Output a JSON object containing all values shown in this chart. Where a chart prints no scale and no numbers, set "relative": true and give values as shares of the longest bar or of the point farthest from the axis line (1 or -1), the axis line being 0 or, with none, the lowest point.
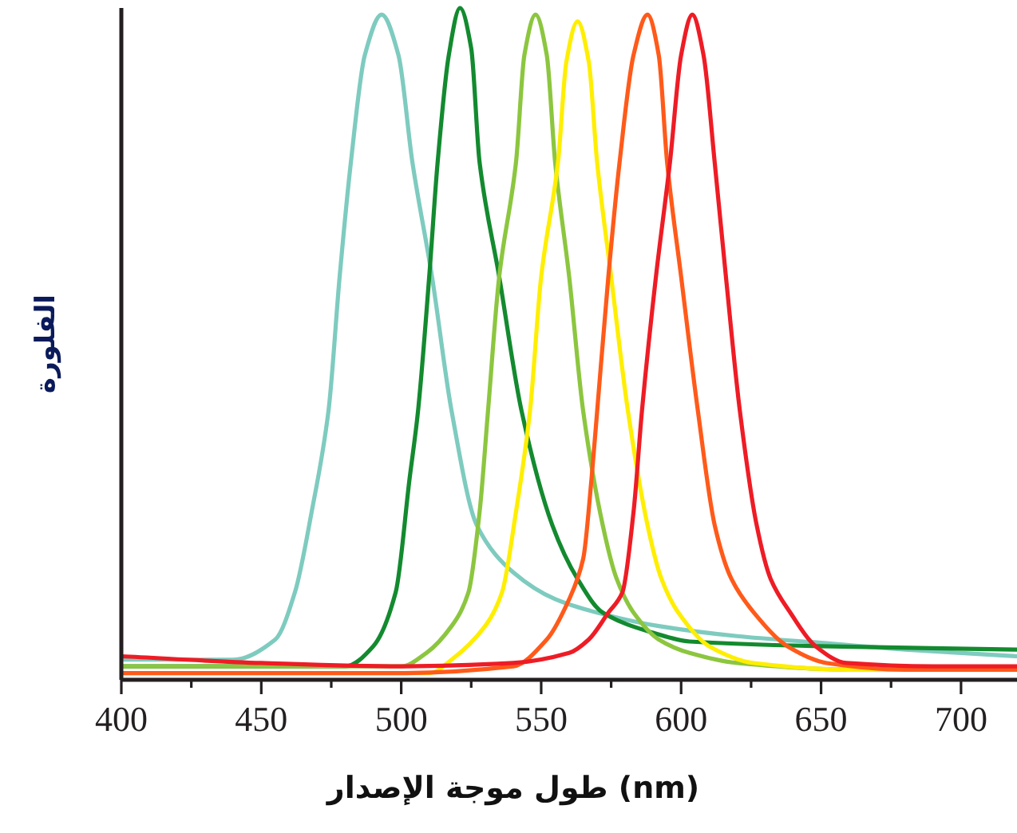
{
  "chart_data": {
    "type": "line",
    "xlabel": "طول موجة الإصدار (nm)",
    "ylabel": "الفلورة",
    "relative": true,
    "xlim": [
      400,
      720
    ],
    "xticks": [
      400,
      {
        "value": 425,
        "label": null
      },
      450,
      {
        "value": 475,
        "label": null
      },
      500,
      {
        "value": 525,
        "label": null
      },
      550,
      {
        "value": 575,
        "label": null
      },
      600,
      {
        "value": 625,
        "label": null
      },
      650,
      {
        "value": 675,
        "label": null
      },
      700
    ],
    "series": [
      {
        "color": "#7ecbbf",
        "x": [
          400,
          440,
          455,
          462,
          468,
          474,
          478,
          482,
          487,
          493,
          499,
          504,
          511,
          518,
          527,
          540,
          555,
          570,
          592,
          620,
          650,
          680,
          720
        ],
        "values": [
          0.03,
          0.03,
          0.06,
          0.13,
          0.25,
          0.4,
          0.6,
          0.77,
          0.93,
          0.99,
          0.93,
          0.77,
          0.6,
          0.4,
          0.23,
          0.16,
          0.12,
          0.1,
          0.08,
          0.065,
          0.055,
          0.045,
          0.035
        ]
      },
      {
        "color": "#138a2f",
        "x": [
          400,
          480,
          490,
          498,
          503,
          506,
          510,
          513,
          517,
          521,
          525,
          528,
          535,
          543,
          554,
          563,
          572,
          590,
          603,
          650,
          720
        ],
        "values": [
          0.02,
          0.02,
          0.05,
          0.13,
          0.3,
          0.4,
          0.6,
          0.77,
          0.93,
          1.0,
          0.94,
          0.77,
          0.6,
          0.4,
          0.23,
          0.15,
          0.1,
          0.07,
          0.057,
          0.05,
          0.045
        ]
      },
      {
        "color": "#8cc63f",
        "x": [
          400,
          500,
          509,
          518,
          524,
          528,
          531,
          535,
          541,
          544,
          548,
          552,
          555,
          560,
          565,
          572,
          577,
          583,
          592,
          603,
          620,
          660,
          720
        ],
        "values": [
          0.02,
          0.02,
          0.04,
          0.08,
          0.13,
          0.25,
          0.4,
          0.6,
          0.77,
          0.93,
          0.99,
          0.93,
          0.77,
          0.6,
          0.4,
          0.23,
          0.15,
          0.1,
          0.06,
          0.04,
          0.025,
          0.015,
          0.015
        ]
      },
      {
        "color": "#ffee00",
        "x": [
          400,
          510,
          518,
          530,
          536,
          541,
          546,
          550,
          556,
          559,
          563,
          567,
          570,
          575,
          581,
          588,
          593,
          599,
          610,
          626,
          660,
          720
        ],
        "values": [
          0.01,
          0.01,
          0.03,
          0.08,
          0.13,
          0.25,
          0.4,
          0.6,
          0.77,
          0.92,
          0.98,
          0.92,
          0.77,
          0.6,
          0.4,
          0.23,
          0.15,
          0.1,
          0.05,
          0.025,
          0.015,
          0.015
        ]
      },
      {
        "color": "#ff5a1a",
        "x": [
          400,
          500,
          540,
          552,
          560,
          565,
          568,
          570,
          574,
          578,
          583,
          588,
          592,
          595,
          600,
          606,
          612,
          618,
          626,
          638,
          652,
          680,
          720
        ],
        "values": [
          0.01,
          0.01,
          0.02,
          0.06,
          0.12,
          0.18,
          0.3,
          0.4,
          0.6,
          0.77,
          0.93,
          0.99,
          0.93,
          0.77,
          0.6,
          0.4,
          0.23,
          0.15,
          0.1,
          0.05,
          0.025,
          0.015,
          0.015
        ]
      },
      {
        "color": "#ee1c25",
        "x": [
          400,
          450,
          500,
          540,
          560,
          567,
          574,
          579,
          583,
          586,
          591,
          596,
          600,
          604,
          608,
          612,
          616,
          621,
          627,
          632,
          639,
          648,
          659,
          690,
          720
        ],
        "values": [
          0.035,
          0.025,
          0.02,
          0.025,
          0.04,
          0.06,
          0.1,
          0.13,
          0.25,
          0.4,
          0.6,
          0.77,
          0.93,
          0.99,
          0.93,
          0.77,
          0.6,
          0.4,
          0.23,
          0.15,
          0.1,
          0.05,
          0.025,
          0.02,
          0.02
        ]
      }
    ]
  }
}
